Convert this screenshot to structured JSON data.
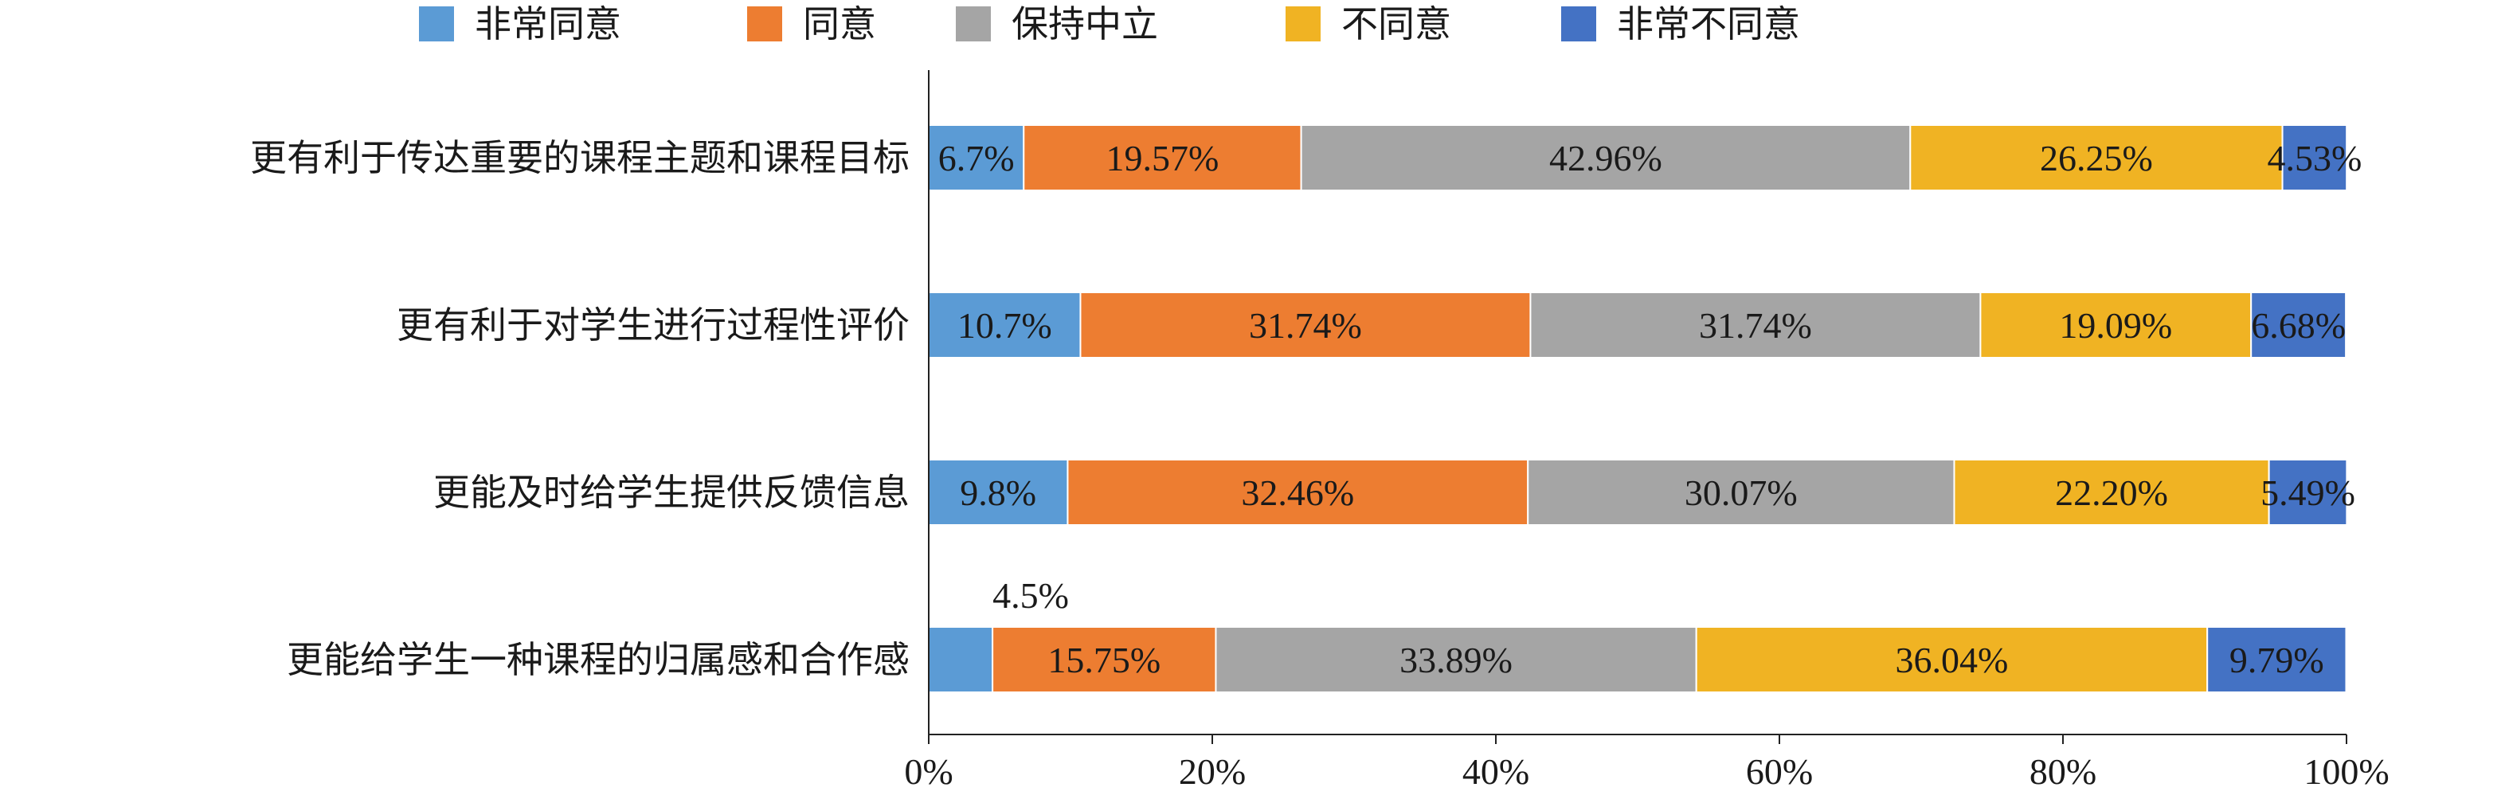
{
  "chart_data": {
    "type": "bar",
    "orientation": "horizontal",
    "stacked": true,
    "categories": [
      "更有利于传达重要的课程主题和课程目标",
      "更有利于对学生进行过程性评价",
      "更能及时给学生提供反馈信息",
      "更能给学生一种课程的归属感和合作感"
    ],
    "series": [
      {
        "name": "非常同意",
        "color": "#5B9BD5",
        "values": [
          6.7,
          10.7,
          9.8,
          4.5
        ],
        "labels": [
          "6.7%",
          "10.7%",
          "9.8%",
          "4.5%"
        ]
      },
      {
        "name": "同意",
        "color": "#ED7D31",
        "values": [
          19.57,
          31.74,
          32.46,
          15.75
        ],
        "labels": [
          "19.57%",
          "31.74%",
          "32.46%",
          "15.75%"
        ]
      },
      {
        "name": "保持中立",
        "color": "#A5A5A5",
        "values": [
          42.96,
          31.74,
          30.07,
          33.89
        ],
        "labels": [
          "42.96%",
          "31.74%",
          "30.07%",
          "33.89%"
        ]
      },
      {
        "name": "不同意",
        "color": "#F0B323",
        "values": [
          26.25,
          19.09,
          22.2,
          36.04
        ],
        "labels": [
          "26.25%",
          "19.09%",
          "22.20%",
          "36.04%"
        ]
      },
      {
        "name": "非常不同意",
        "color": "#4472C4",
        "values": [
          4.53,
          6.68,
          5.49,
          9.79
        ],
        "labels": [
          "4.53%",
          "6.68%",
          "5.49%",
          "9.79%"
        ]
      }
    ],
    "xlim": [
      0,
      100
    ],
    "xticks": [
      "0%",
      "20%",
      "40%",
      "60%",
      "80%",
      "100%"
    ],
    "legend_position": "top",
    "grid": false,
    "title": "",
    "xlabel": "",
    "ylabel": ""
  }
}
